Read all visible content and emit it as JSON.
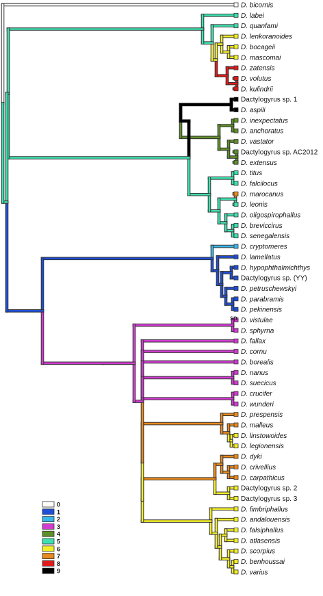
{
  "colors": {
    "0": "#ffffff",
    "1": "#1f4fd6",
    "2": "#3bb7e8",
    "3": "#d13bd1",
    "4": "#5f8f2a",
    "5": "#3fe0b0",
    "6": "#f3ee2a",
    "7": "#e88a1f",
    "8": "#e21a1a",
    "9": "#000000"
  },
  "legend": [
    {
      "label": "0",
      "state": "0"
    },
    {
      "label": "1",
      "state": "1"
    },
    {
      "label": "2",
      "state": "2"
    },
    {
      "label": "3",
      "state": "3"
    },
    {
      "label": "4",
      "state": "4"
    },
    {
      "label": "5",
      "state": "5"
    },
    {
      "label": "6",
      "state": "6"
    },
    {
      "label": "7",
      "state": "7"
    },
    {
      "label": "8",
      "state": "8"
    },
    {
      "label": "9",
      "state": "9"
    }
  ],
  "taxa": [
    {
      "text": "D. bicornis",
      "state": "0"
    },
    {
      "text": "D. labei",
      "state": "5"
    },
    {
      "text": "D. quanfami",
      "state": "5"
    },
    {
      "text": "D. lenkoranoides",
      "state": "6"
    },
    {
      "text": "D. bocageii",
      "state": "6"
    },
    {
      "text": "D. mascomai",
      "state": "6"
    },
    {
      "text": "D. zatensis",
      "state": "8"
    },
    {
      "text": "D. volutus",
      "state": "8"
    },
    {
      "text": "D. kulindrii",
      "state": "8"
    },
    {
      "text": "Dactylogyrus sp. 1",
      "state": "9",
      "plain": true
    },
    {
      "text": "D. aspili",
      "state": "9"
    },
    {
      "text": "D. inexpectatus",
      "state": "4"
    },
    {
      "text": "D. anchoratus",
      "state": "4"
    },
    {
      "text": "D. vastator",
      "state": "4"
    },
    {
      "text": "Dactylogyrus sp. AC2012",
      "state": "4",
      "plain": true
    },
    {
      "text": "D. extensus",
      "state": "4"
    },
    {
      "text": "D. titus",
      "state": "5"
    },
    {
      "text": "D. falcilocus",
      "state": "5"
    },
    {
      "text": "D. marocanus",
      "state": "7"
    },
    {
      "text": "D. leonis",
      "state": "5"
    },
    {
      "text": "D. oligospirophallus",
      "state": "5"
    },
    {
      "text": "D. breviccirus",
      "state": "5"
    },
    {
      "text": "D. senegalensis",
      "state": "5"
    },
    {
      "text": "D. cryptomeres",
      "state": "2"
    },
    {
      "text": "D. lamellatus",
      "state": "1"
    },
    {
      "text": "D. hypophthalmichthys",
      "state": "1"
    },
    {
      "text": "Dactylogyrus sp. (YY)",
      "state": "1",
      "plain": true
    },
    {
      "text": "D. petruschewskyi",
      "state": "1"
    },
    {
      "text": "D. parabramis",
      "state": "1"
    },
    {
      "text": "D. pekinensis",
      "state": "1"
    },
    {
      "text": "D. vistulae",
      "state": "3"
    },
    {
      "text": "D. sphyrna",
      "state": "3"
    },
    {
      "text": "D. fallax",
      "state": "3"
    },
    {
      "text": "D. cornu",
      "state": "3"
    },
    {
      "text": "D. borealis",
      "state": "3"
    },
    {
      "text": "D. nanus",
      "state": "3"
    },
    {
      "text": "D. suecicus",
      "state": "3"
    },
    {
      "text": "D. crucifer",
      "state": "3"
    },
    {
      "text": "D. wunderi",
      "state": "3"
    },
    {
      "text": "D. prespensis",
      "state": "7"
    },
    {
      "text": "D. malleus",
      "state": "7"
    },
    {
      "text": "D. linstowoides",
      "state": "6"
    },
    {
      "text": "D. legionensis",
      "state": "6"
    },
    {
      "text": "D. dyki",
      "state": "7"
    },
    {
      "text": "D. crivellius",
      "state": "7"
    },
    {
      "text": "D. carpathicus",
      "state": "7"
    },
    {
      "text": "Dactylogyrus sp. 2",
      "state": "6",
      "plain": true
    },
    {
      "text": "Dactylogyrus sp. 3",
      "state": "6",
      "plain": true
    },
    {
      "text": "D. fimbriphallus",
      "state": "6"
    },
    {
      "text": "D. andalouensis",
      "state": "6"
    },
    {
      "text": "D. falsiphallus",
      "state": "6"
    },
    {
      "text": "D. atlasensis",
      "state": "6"
    },
    {
      "text": "D. scorpius",
      "state": "6"
    },
    {
      "text": "D. benhoussai",
      "state": "6"
    },
    {
      "text": "D. varius",
      "state": "6"
    }
  ],
  "annotation": "sp."
}
